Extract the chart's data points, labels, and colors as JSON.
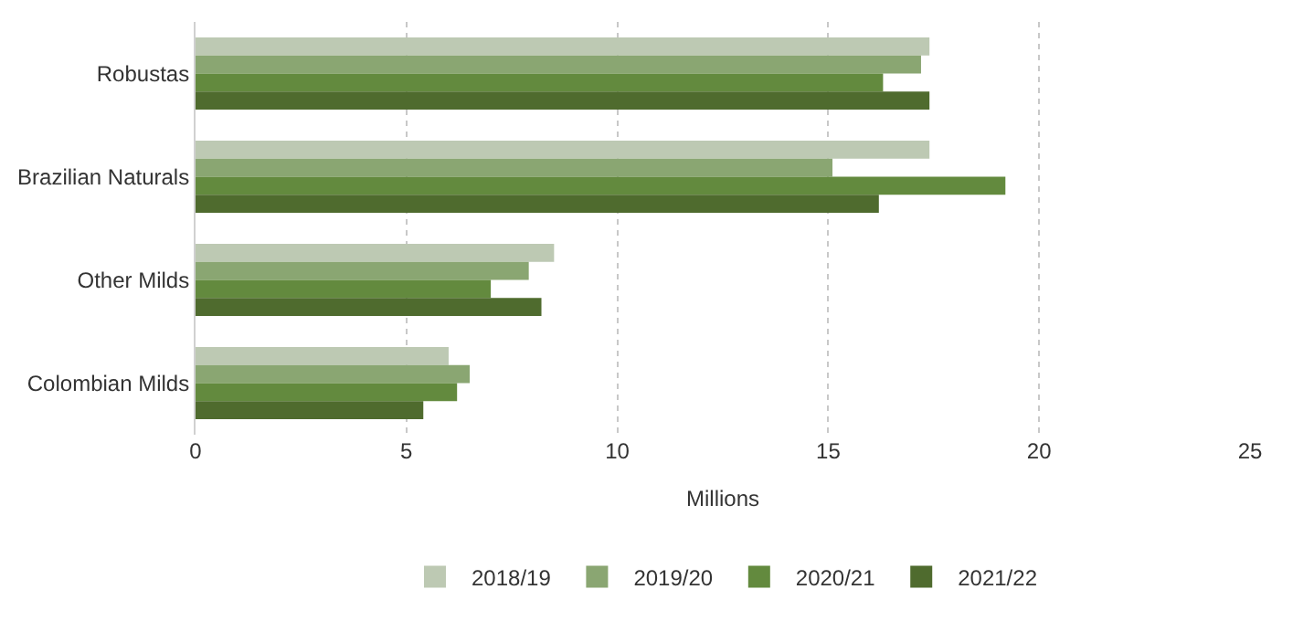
{
  "chart_data": {
    "type": "bar",
    "orientation": "horizontal",
    "xlabel": "Millions",
    "categories": [
      "Robustas",
      "Brazilian Naturals",
      "Other Milds",
      "Colombian Milds"
    ],
    "series": [
      {
        "name": "2018/19",
        "color": "#bdc9b3",
        "values": [
          17.4,
          17.4,
          8.5,
          6.0
        ]
      },
      {
        "name": "2019/20",
        "color": "#8aa672",
        "values": [
          17.2,
          15.1,
          7.9,
          6.5
        ]
      },
      {
        "name": "2020/21",
        "color": "#638a3e",
        "values": [
          16.3,
          19.2,
          7.0,
          6.2
        ]
      },
      {
        "name": "2021/22",
        "color": "#4f6b2e",
        "values": [
          17.4,
          16.2,
          8.2,
          5.4
        ]
      }
    ],
    "xlim": [
      0,
      25
    ],
    "xticks": [
      0,
      5,
      10,
      15,
      20,
      25
    ],
    "grid": "x",
    "legend": "bottom"
  }
}
